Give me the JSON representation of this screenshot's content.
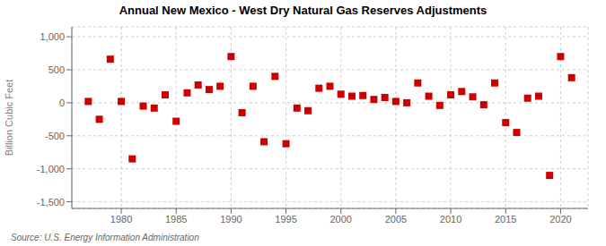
{
  "chart_data": {
    "type": "scatter",
    "title": "Annual New Mexico - West Dry Natural Gas Reserves Adjustments",
    "ylabel": "Billion Cubic Feet",
    "annotations": [
      "Source: U.S. Energy Information Administration"
    ],
    "color": "#cc0000",
    "marker": "square",
    "grid": true,
    "xlim": [
      1975.5,
      2022.5
    ],
    "ylim": [
      -1600,
      1150
    ],
    "xticks": [
      1980,
      1985,
      1990,
      1995,
      2000,
      2005,
      2010,
      2015,
      2020
    ],
    "yticks": [
      {
        "value": -1500,
        "label": "-1,500"
      },
      {
        "value": -1000,
        "label": "-1,000"
      },
      -500,
      0,
      500,
      {
        "value": 1000,
        "label": "1,000"
      }
    ],
    "x": [
      1977,
      1978,
      1979,
      1980,
      1981,
      1982,
      1983,
      1984,
      1985,
      1986,
      1987,
      1988,
      1989,
      1990,
      1991,
      1992,
      1993,
      1994,
      1995,
      1996,
      1997,
      1998,
      1999,
      2000,
      2001,
      2002,
      2003,
      2004,
      2005,
      2006,
      2007,
      2008,
      2009,
      2010,
      2011,
      2012,
      2013,
      2014,
      2015,
      2016,
      2017,
      2018,
      2019,
      2020,
      2021
    ],
    "values": [
      20,
      -250,
      660,
      20,
      -850,
      -50,
      -80,
      120,
      -280,
      150,
      270,
      200,
      250,
      700,
      -150,
      250,
      -590,
      400,
      -620,
      -80,
      -120,
      220,
      250,
      130,
      100,
      110,
      50,
      80,
      20,
      0,
      300,
      100,
      -40,
      120,
      170,
      90,
      -30,
      300,
      -300,
      -450,
      70,
      100,
      -1100,
      700,
      380
    ]
  }
}
